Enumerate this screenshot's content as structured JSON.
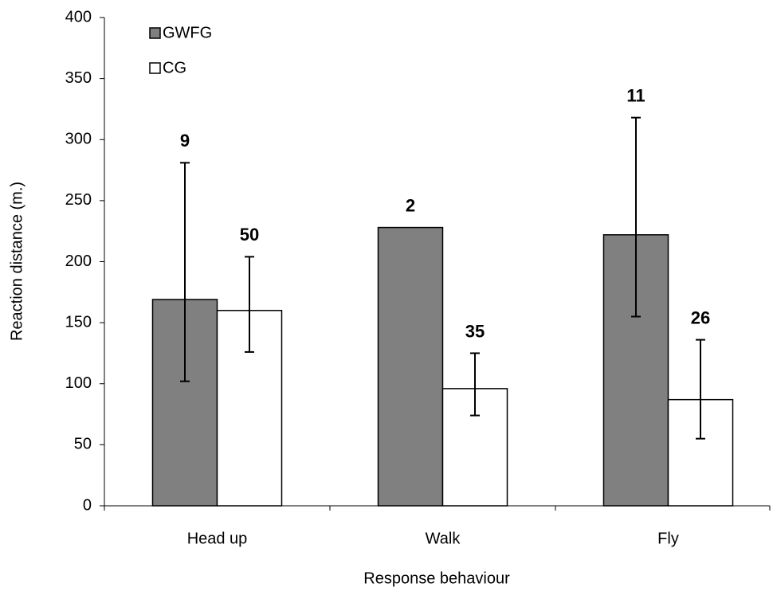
{
  "chart_data": {
    "type": "bar",
    "x_label": "Response behaviour",
    "y_label": "Reaction distance (m.)",
    "categories": [
      "Head up",
      "Walk",
      "Fly"
    ],
    "series": [
      {
        "name": "GWFG",
        "color": "#808080",
        "values": [
          169,
          228,
          222
        ],
        "error_low": [
          102,
          null,
          155
        ],
        "error_high": [
          281,
          null,
          318
        ],
        "sample_sizes": [
          9,
          2,
          11
        ]
      },
      {
        "name": "CG",
        "color": "#ffffff",
        "values": [
          160,
          96,
          87
        ],
        "error_low": [
          126,
          74,
          55
        ],
        "error_high": [
          204,
          125,
          136
        ],
        "sample_sizes": [
          50,
          35,
          26
        ]
      }
    ],
    "ylim": [
      0,
      400
    ],
    "yticks": [
      0,
      50,
      100,
      150,
      200,
      250,
      300,
      350,
      400
    ],
    "grid": false,
    "legend": "upper left"
  }
}
